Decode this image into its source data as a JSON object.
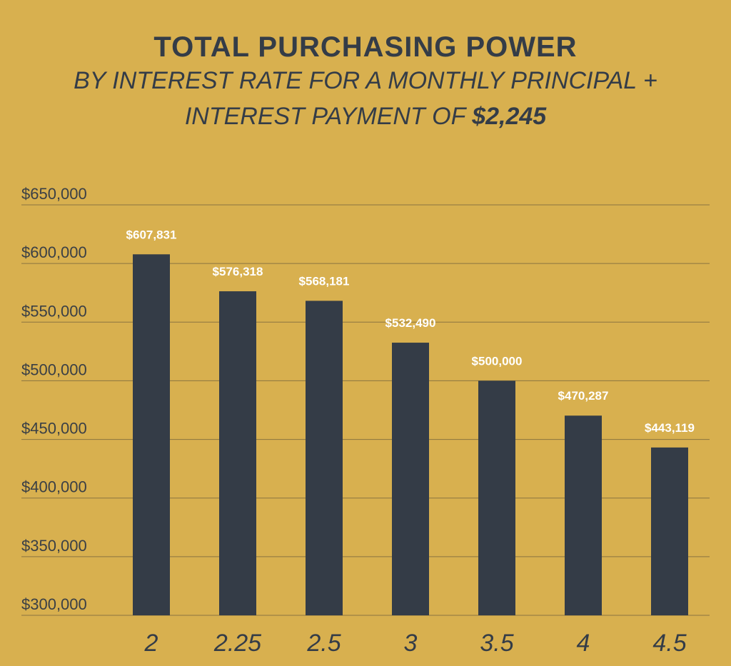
{
  "chart_data": {
    "type": "bar",
    "title": "TOTAL PURCHASING POWER",
    "subtitle_line1": "BY INTEREST RATE FOR A MONTHLY PRINCIPAL +",
    "subtitle_line2_prefix": "INTEREST PAYMENT OF ",
    "subtitle_line2_amount": "$2,245",
    "categories": [
      "2",
      "2.25",
      "2.5",
      "3",
      "3.5",
      "4",
      "4.5"
    ],
    "values": [
      607831,
      576318,
      568181,
      532490,
      500000,
      470287,
      443119
    ],
    "data_labels": [
      "$607,831",
      "$576,318",
      "$568,181",
      "$532,490",
      "$500,000",
      "$470,287",
      "$443,119"
    ],
    "ylim": [
      300000,
      650000
    ],
    "yticks": [
      300000,
      350000,
      400000,
      450000,
      500000,
      550000,
      600000,
      650000
    ],
    "ytick_labels": [
      "$300,000",
      "$350,000",
      "$400,000",
      "$450,000",
      "$500,000",
      "$550,000",
      "$600,000",
      "$650,000"
    ],
    "xlabel": "",
    "ylabel": "",
    "grid": true,
    "legend": "none",
    "colors": {
      "background": "#d8b04f",
      "bar": "#343c47",
      "text": "#343c47",
      "data_label": "#ffffff",
      "grid": "#8a7440"
    }
  }
}
